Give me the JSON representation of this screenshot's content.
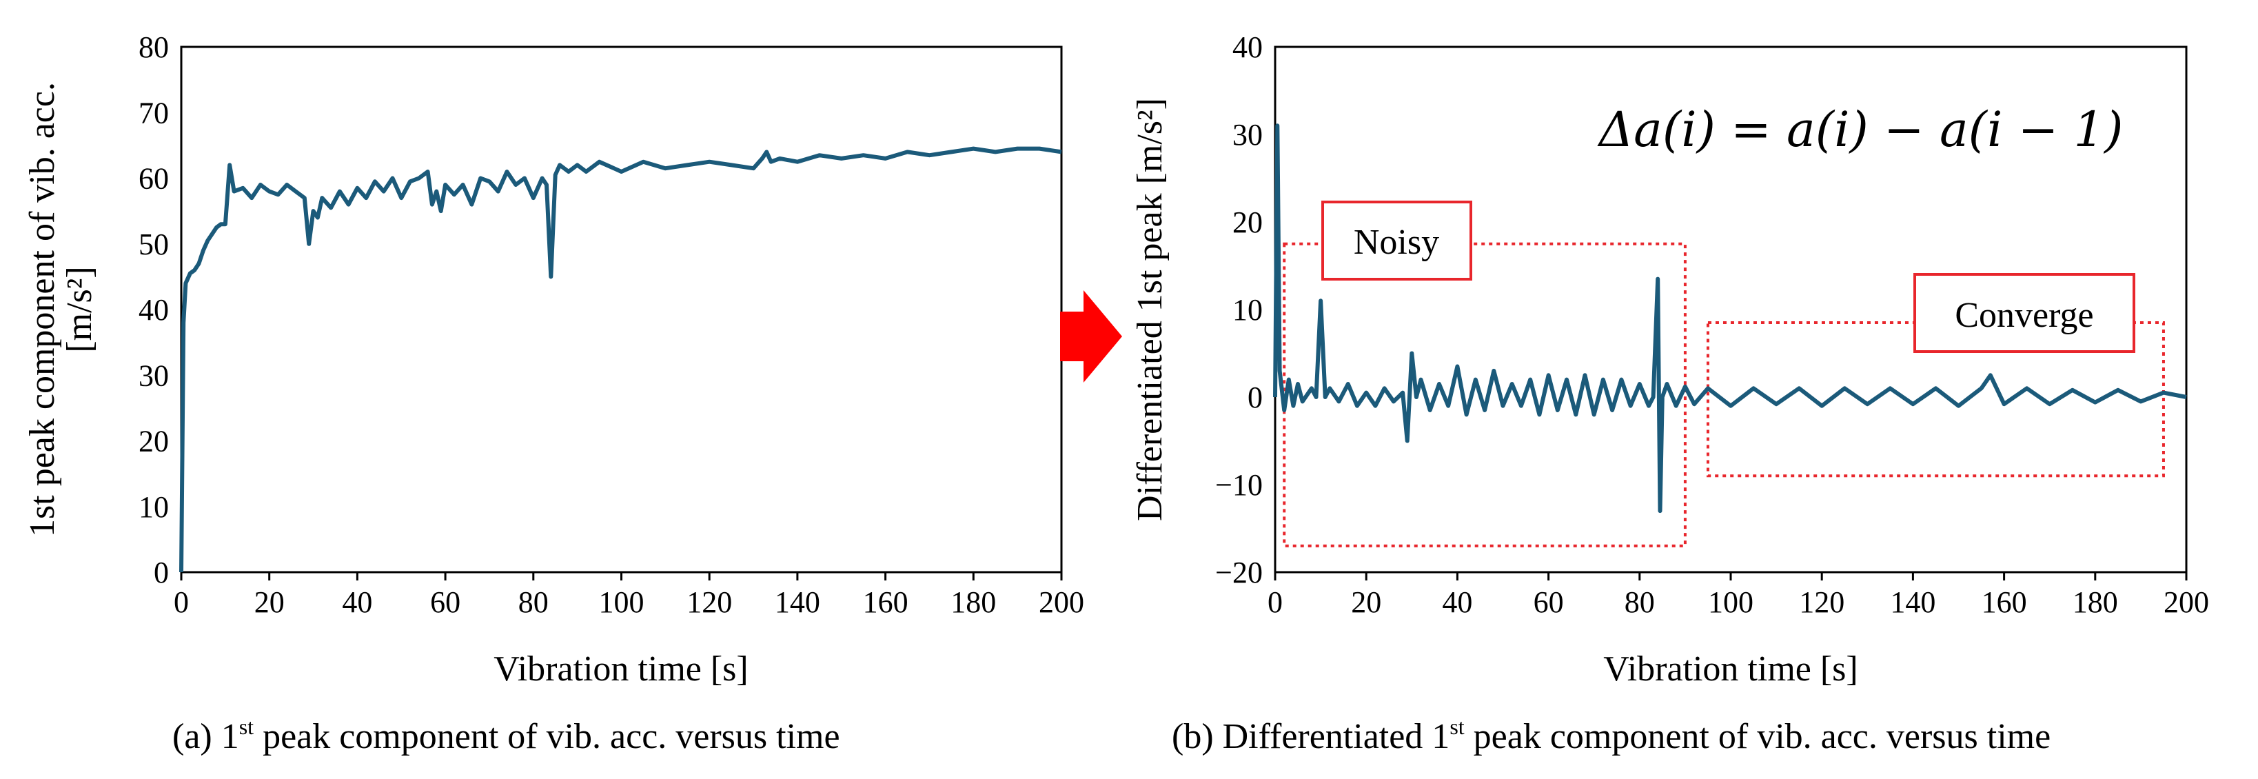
{
  "chart_data": [
    {
      "type": "line",
      "panel": "a",
      "caption_prefix": "(a) 1",
      "caption_sup": "st",
      "caption_suffix": " peak component of vib. acc. versus time",
      "xlabel": "Vibration time [s]",
      "ylabel_line1": "1st peak component of  vib. acc.",
      "ylabel_line2": "[m/s²]",
      "xlim": [
        0,
        200
      ],
      "ylim": [
        0,
        80
      ],
      "xticks": [
        0,
        20,
        40,
        60,
        80,
        100,
        120,
        140,
        160,
        180,
        200
      ],
      "yticks": [
        0,
        10,
        20,
        30,
        40,
        50,
        60,
        70,
        80
      ],
      "series_color": "#1b5a7a",
      "series": [
        {
          "name": "1st peak",
          "x": [
            0,
            0.5,
            1,
            2,
            3,
            4,
            5,
            6,
            7,
            8,
            9,
            10,
            11,
            12,
            14,
            16,
            18,
            20,
            22,
            24,
            26,
            28,
            29,
            30,
            31,
            32,
            34,
            36,
            38,
            40,
            42,
            44,
            46,
            48,
            50,
            52,
            54,
            56,
            57,
            58,
            59,
            60,
            62,
            64,
            66,
            68,
            70,
            72,
            74,
            76,
            78,
            80,
            82,
            83,
            84,
            85,
            86,
            88,
            90,
            92,
            95,
            100,
            105,
            110,
            115,
            120,
            125,
            130,
            132,
            133,
            134,
            136,
            140,
            145,
            150,
            155,
            160,
            165,
            170,
            175,
            180,
            185,
            190,
            195,
            200
          ],
          "y": [
            0,
            38,
            44,
            45.5,
            46,
            47,
            49,
            50.5,
            51.5,
            52.5,
            53,
            53,
            62,
            58,
            58.5,
            57,
            59,
            58,
            57.5,
            59,
            58,
            57,
            50,
            55,
            54,
            57,
            55.5,
            58,
            56,
            58.5,
            57,
            59.5,
            58,
            60,
            57,
            59.5,
            60,
            61,
            56,
            58,
            55,
            59,
            57.5,
            59,
            56,
            60,
            59.5,
            58,
            61,
            59,
            60,
            57,
            60,
            59,
            45,
            60.5,
            62,
            61,
            62,
            61,
            62.5,
            61,
            62.5,
            61.5,
            62,
            62.5,
            62,
            61.5,
            63,
            64,
            62.5,
            63,
            62.5,
            63.5,
            63,
            63.5,
            63,
            64,
            63.5,
            64,
            64.5,
            64,
            64.5,
            64.5,
            64
          ]
        }
      ]
    },
    {
      "type": "line",
      "panel": "b",
      "caption_prefix": "(b) Differentiated 1",
      "caption_sup": "st",
      "caption_suffix": " peak component of vib. acc. versus time",
      "xlabel": "Vibration time [s]",
      "ylabel": "Differentiated 1st peak [m/s²]",
      "xlim": [
        0,
        200
      ],
      "ylim": [
        -20,
        40
      ],
      "xticks": [
        0,
        20,
        40,
        60,
        80,
        100,
        120,
        140,
        160,
        180,
        200
      ],
      "yticks": [
        -20,
        -10,
        0,
        10,
        20,
        30,
        40
      ],
      "series_color": "#1b5a7a",
      "series": [
        {
          "name": "Δa",
          "x": [
            0,
            0.5,
            1,
            2,
            3,
            4,
            5,
            6,
            8,
            9,
            10,
            11,
            12,
            14,
            16,
            18,
            20,
            22,
            24,
            26,
            28,
            29,
            30,
            31,
            32,
            34,
            36,
            38,
            40,
            42,
            44,
            46,
            48,
            50,
            52,
            54,
            56,
            58,
            60,
            62,
            64,
            66,
            68,
            70,
            72,
            74,
            76,
            78,
            80,
            82,
            83,
            84,
            84.5,
            85,
            86,
            88,
            90,
            92,
            95,
            100,
            105,
            110,
            115,
            120,
            125,
            130,
            135,
            140,
            145,
            150,
            155,
            157,
            160,
            165,
            170,
            175,
            180,
            185,
            190,
            195,
            200
          ],
          "y": [
            0,
            31,
            3,
            -1.5,
            2,
            -1,
            1.5,
            -0.5,
            1,
            0,
            11,
            0,
            1,
            -0.5,
            1.5,
            -1,
            0.5,
            -1,
            1,
            -0.5,
            0.5,
            -5,
            5,
            0,
            2,
            -1.5,
            1.5,
            -1,
            3.5,
            -2,
            2,
            -1.5,
            3,
            -1,
            1.5,
            -1,
            2,
            -2,
            2.5,
            -1.5,
            2,
            -2,
            2.5,
            -2,
            2,
            -1.5,
            2,
            -1,
            1.5,
            -1,
            0,
            13.5,
            -13,
            0,
            1.5,
            -1,
            1.2,
            -0.8,
            1,
            -1,
            1,
            -0.8,
            1,
            -1,
            1,
            -0.8,
            1,
            -0.8,
            1,
            -1,
            1,
            2.5,
            -0.8,
            1,
            -0.8,
            0.8,
            -0.6,
            0.8,
            -0.5,
            0.5,
            0
          ]
        }
      ],
      "annotations": {
        "equation": "Δa(i) = a(i) − a(i − 1)",
        "noisy_label": "Noisy",
        "converge_label": "Converge",
        "noisy_region": {
          "x": [
            2,
            90
          ],
          "y": [
            -17,
            17.5
          ]
        },
        "converge_region": {
          "x": [
            95,
            195
          ],
          "y": [
            -9,
            8.5
          ]
        }
      }
    }
  ],
  "colors": {
    "series": "#1b5a7a",
    "arrow": "#ff0000",
    "box": "#e8262c"
  }
}
